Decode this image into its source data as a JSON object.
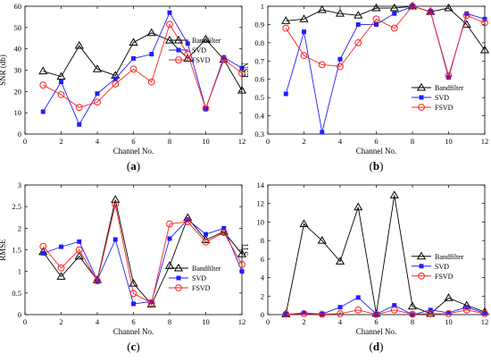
{
  "figure": {
    "style": {
      "colors": {
        "Bandfilter": "#000000",
        "SVD": "#1f1fff",
        "FSVD": "#ff2020"
      },
      "markers": {
        "Bandfilter": "triangle",
        "SVD": "square",
        "FSVD": "circle"
      }
    }
  },
  "chart_data": [
    {
      "type": "line",
      "panel_label": "(a)",
      "xlabel": "Channel No.",
      "ylabel": "SNR (db)",
      "xlim": [
        0,
        12
      ],
      "ylim": [
        0,
        60
      ],
      "xticks": [
        0,
        2,
        4,
        6,
        8,
        10,
        12
      ],
      "yticks": [
        0,
        10,
        20,
        30,
        40,
        50,
        60
      ],
      "legend_position": "upper-right",
      "x": [
        1,
        2,
        3,
        4,
        5,
        6,
        7,
        8,
        9,
        10,
        11,
        12
      ],
      "series": [
        {
          "name": "Bandfilter",
          "values": [
            29.5,
            27,
            41.5,
            30.5,
            27.5,
            43,
            47.5,
            44,
            35.5,
            44.5,
            35,
            20.5
          ]
        },
        {
          "name": "SVD",
          "values": [
            10.5,
            24.5,
            4.5,
            19,
            26,
            35.5,
            37.5,
            57,
            42.5,
            12,
            36,
            31
          ]
        },
        {
          "name": "FSVD",
          "values": [
            23,
            18.5,
            12.5,
            15,
            23.5,
            30.5,
            24.5,
            51.5,
            37.5,
            12,
            35,
            28.5
          ]
        }
      ]
    },
    {
      "type": "line",
      "panel_label": "(b)",
      "xlabel": "Channel No.",
      "ylabel": "ESN",
      "xlim": [
        0,
        12
      ],
      "ylim": [
        0.3,
        1
      ],
      "xticks": [
        0,
        2,
        4,
        6,
        8,
        10,
        12
      ],
      "yticks": [
        0.3,
        0.4,
        0.5,
        0.6,
        0.7,
        0.8,
        0.9,
        1
      ],
      "legend_position": "lower-right",
      "x": [
        1,
        2,
        3,
        4,
        5,
        6,
        7,
        8,
        9,
        10,
        11,
        12
      ],
      "series": [
        {
          "name": "Bandfilter",
          "values": [
            0.92,
            0.93,
            0.98,
            0.96,
            0.95,
            0.99,
            0.99,
            1.0,
            0.97,
            0.99,
            0.9,
            0.76
          ]
        },
        {
          "name": "SVD",
          "values": [
            0.52,
            0.86,
            0.31,
            0.71,
            0.9,
            0.9,
            0.96,
            1.0,
            0.97,
            0.61,
            0.96,
            0.93
          ]
        },
        {
          "name": "FSVD",
          "values": [
            0.88,
            0.73,
            0.68,
            0.67,
            0.8,
            0.93,
            0.88,
            1.0,
            0.97,
            0.62,
            0.95,
            0.91
          ]
        }
      ]
    },
    {
      "type": "line",
      "panel_label": "(c)",
      "xlabel": "Channel No.",
      "ylabel": "RMSE",
      "xlim": [
        0,
        12
      ],
      "ylim": [
        0,
        3
      ],
      "xticks": [
        0,
        2,
        4,
        6,
        8,
        10,
        12
      ],
      "yticks": [
        0,
        0.5,
        1,
        1.5,
        2,
        2.5,
        3
      ],
      "legend_position": "lower-right",
      "x": [
        1,
        2,
        3,
        4,
        5,
        6,
        7,
        8,
        9,
        10,
        11,
        12
      ],
      "series": [
        {
          "name": "Bandfilter",
          "values": [
            1.45,
            0.88,
            1.35,
            0.8,
            2.66,
            0.72,
            0.24,
            1.13,
            2.24,
            1.73,
            1.92,
            1.4
          ]
        },
        {
          "name": "SVD",
          "values": [
            1.42,
            1.57,
            1.69,
            0.8,
            1.74,
            0.25,
            0.3,
            1.76,
            2.2,
            1.86,
            2.0,
            1.0
          ]
        },
        {
          "name": "FSVD",
          "values": [
            1.58,
            1.08,
            1.5,
            0.78,
            2.55,
            0.49,
            0.27,
            2.1,
            2.15,
            1.68,
            1.9,
            1.16
          ]
        }
      ]
    },
    {
      "type": "line",
      "panel_label": "(d)",
      "xlabel": "Channel No.",
      "ylabel": "STI",
      "xlim": [
        0,
        12
      ],
      "ylim": [
        0,
        14
      ],
      "xticks": [
        0,
        2,
        4,
        6,
        8,
        10,
        12
      ],
      "yticks": [
        0,
        2,
        4,
        6,
        8,
        10,
        12,
        14
      ],
      "legend_position": "center-right",
      "x": [
        1,
        2,
        3,
        4,
        5,
        6,
        7,
        8,
        9,
        10,
        11,
        12
      ],
      "series": [
        {
          "name": "Bandfilter",
          "values": [
            0.05,
            9.8,
            8.0,
            5.75,
            11.6,
            0.1,
            12.9,
            0.9,
            0.1,
            1.8,
            1.0,
            0.3
          ]
        },
        {
          "name": "SVD",
          "values": [
            0.0,
            0.2,
            0.05,
            0.8,
            1.85,
            0.05,
            1.0,
            0.0,
            0.5,
            0.2,
            0.8,
            0.15
          ]
        },
        {
          "name": "FSVD",
          "values": [
            0.05,
            0.1,
            0.05,
            0.1,
            0.5,
            0.02,
            0.5,
            0.05,
            0.1,
            0.1,
            0.5,
            0.1
          ]
        }
      ]
    }
  ]
}
